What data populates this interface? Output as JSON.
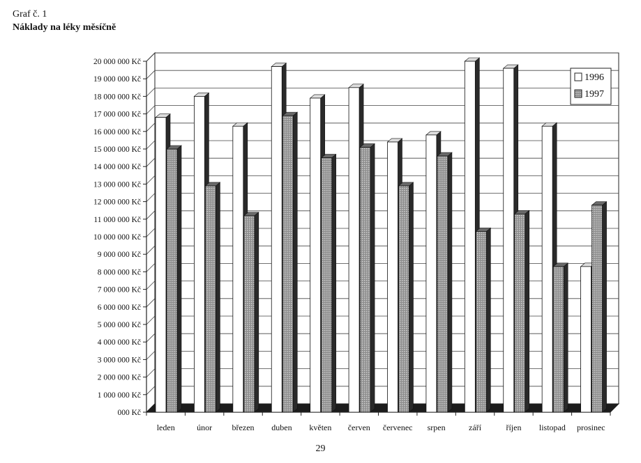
{
  "header": {
    "graph_label": "Graf č. 1",
    "title": "Náklady na léky měsíčně"
  },
  "page_number": "29",
  "colors": {
    "series_1996_fill": "#ffffff",
    "series_1997_fill": "#9a9a9a",
    "bar_side": "#2a2a2a",
    "axis": "#222222",
    "grid": "#444444"
  },
  "chart_data": {
    "type": "bar",
    "title": "Náklady na léky měsíčně",
    "xlabel": "",
    "ylabel": "",
    "ylim": [
      0,
      20000000
    ],
    "grid": true,
    "legend_position": "top-right",
    "y_tick_labels": [
      "000 Kč",
      "1 000 000 Kč",
      "2 000 000 Kč",
      "3 000 000 Kč",
      "4 000 000 Kč",
      "5 000 000 Kč",
      "6 000 000 Kč",
      "7 000 000 Kč",
      "8 000 000 Kč",
      "9 000 000 Kč",
      "10 000 000 Kč",
      "11 000 000 Kč",
      "12 000 000 Kč",
      "13 000 000 Kč",
      "14 000 000 Kč",
      "15 000 000 Kč",
      "16 000 000 Kč",
      "17 000 000 Kč",
      "18 000 000 Kč",
      "19 000 000 Kč",
      "20 000 000 Kč"
    ],
    "categories": [
      "leden",
      "únor",
      "březen",
      "duben",
      "květen",
      "červen",
      "červenec",
      "srpen",
      "září",
      "říjen",
      "listopad",
      "prosinec"
    ],
    "series": [
      {
        "name": "1996",
        "values": [
          16800000,
          18000000,
          16300000,
          19700000,
          17900000,
          18500000,
          15400000,
          15800000,
          20000000,
          19600000,
          16300000,
          8300000
        ]
      },
      {
        "name": "1997",
        "values": [
          15000000,
          12900000,
          11200000,
          16900000,
          14500000,
          15100000,
          12900000,
          14600000,
          10300000,
          11300000,
          8300000,
          11800000
        ]
      }
    ]
  }
}
